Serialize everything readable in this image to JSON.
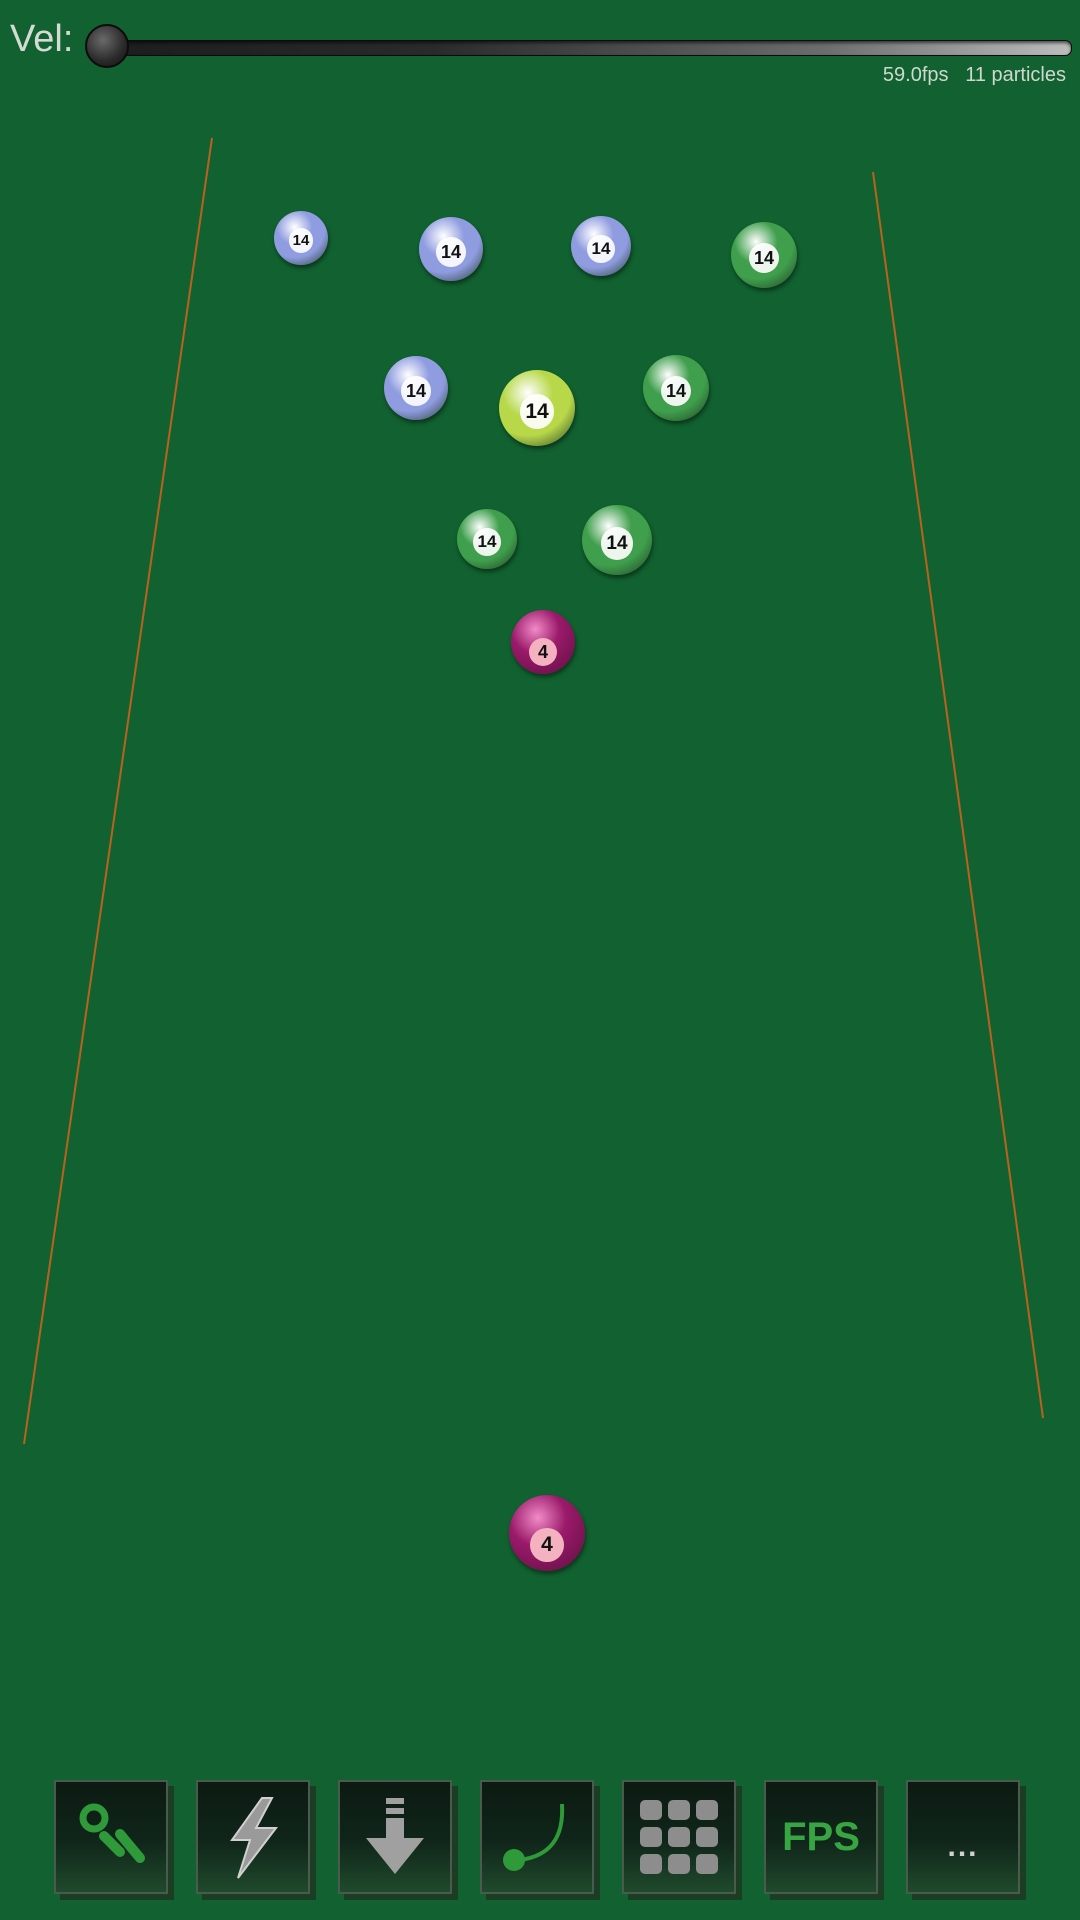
{
  "controls": {
    "velocity_label": "Vel:",
    "velocity_value": 0
  },
  "status": {
    "fps": "59.0fps",
    "particles": "11 particles"
  },
  "colors": {
    "felt": "#116230",
    "rail": "#b9621e",
    "ball_blue": "#8f9ce0",
    "ball_green": "#3f9f4c",
    "ball_lime": "#b8d84a",
    "ball_magenta": "#9a1a6a"
  },
  "balls": [
    {
      "label": "14",
      "color": "#8f9ce0",
      "style": "stripe"
    },
    {
      "label": "14",
      "color": "#8f9ce0",
      "style": "stripe"
    },
    {
      "label": "14",
      "color": "#8f9ce0",
      "style": "stripe"
    },
    {
      "label": "14",
      "color": "#3f9f4c",
      "style": "stripe"
    },
    {
      "label": "14",
      "color": "#8f9ce0",
      "style": "stripe"
    },
    {
      "label": "14",
      "color": "#b8d84a",
      "style": "stripe"
    },
    {
      "label": "14",
      "color": "#3f9f4c",
      "style": "stripe"
    },
    {
      "label": "14",
      "color": "#3f9f4c",
      "style": "stripe"
    },
    {
      "label": "14",
      "color": "#3f9f4c",
      "style": "stripe"
    },
    {
      "label": "4",
      "color": "#9a1a6a",
      "style": "solid"
    },
    {
      "label": "4",
      "color": "#9a1a6a",
      "style": "solid"
    }
  ],
  "toolbar": {
    "tools": [
      {
        "icon": "particles-icon"
      },
      {
        "icon": "lightning-icon"
      },
      {
        "icon": "gravity-arrow-icon"
      },
      {
        "icon": "trail-icon"
      },
      {
        "icon": "grid-icon"
      },
      {
        "icon": "fps-icon",
        "label": "FPS"
      },
      {
        "icon": "more-icon",
        "label": "..."
      }
    ]
  }
}
